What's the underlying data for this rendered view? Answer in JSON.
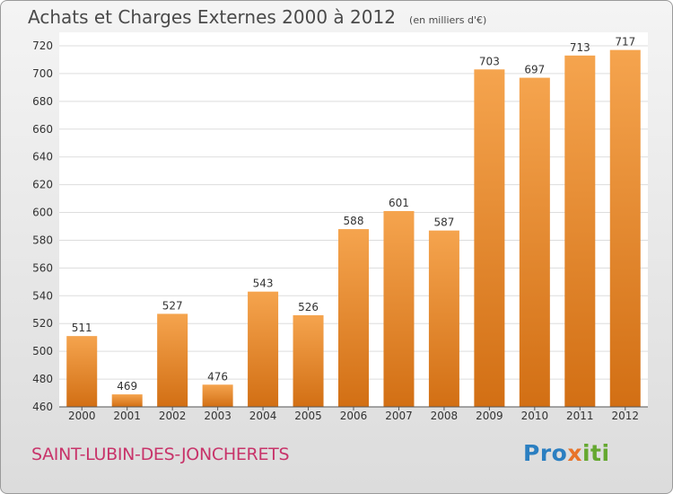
{
  "header": {
    "title": "Achats et Charges Externes 2000 à 2012",
    "unit": "(en milliers d'€)"
  },
  "footer": {
    "commune": "SAINT-LUBIN-DES-JONCHERETS",
    "logo": "Proxiti"
  },
  "colors": {
    "bar_light": "#f5a44e",
    "bar_dark": "#d26f14",
    "logo_blue": "#2b7fc1",
    "logo_orange": "#e8742a",
    "logo_green": "#65a830",
    "commune": "#c8346a"
  },
  "chart_data": {
    "type": "bar",
    "title": "Achats et Charges Externes 2000 à 2012",
    "subtitle": "(en milliers d'€)",
    "categories": [
      "2000",
      "2001",
      "2002",
      "2003",
      "2004",
      "2005",
      "2006",
      "2007",
      "2008",
      "2009",
      "2010",
      "2011",
      "2012"
    ],
    "values": [
      511,
      469,
      527,
      476,
      543,
      526,
      588,
      601,
      587,
      703,
      697,
      713,
      717
    ],
    "ylim": [
      460,
      720
    ],
    "yticks": [
      460,
      480,
      500,
      520,
      540,
      560,
      580,
      600,
      620,
      640,
      660,
      680,
      700,
      720
    ],
    "grid": "horizontal",
    "xlabel": "",
    "ylabel": ""
  }
}
